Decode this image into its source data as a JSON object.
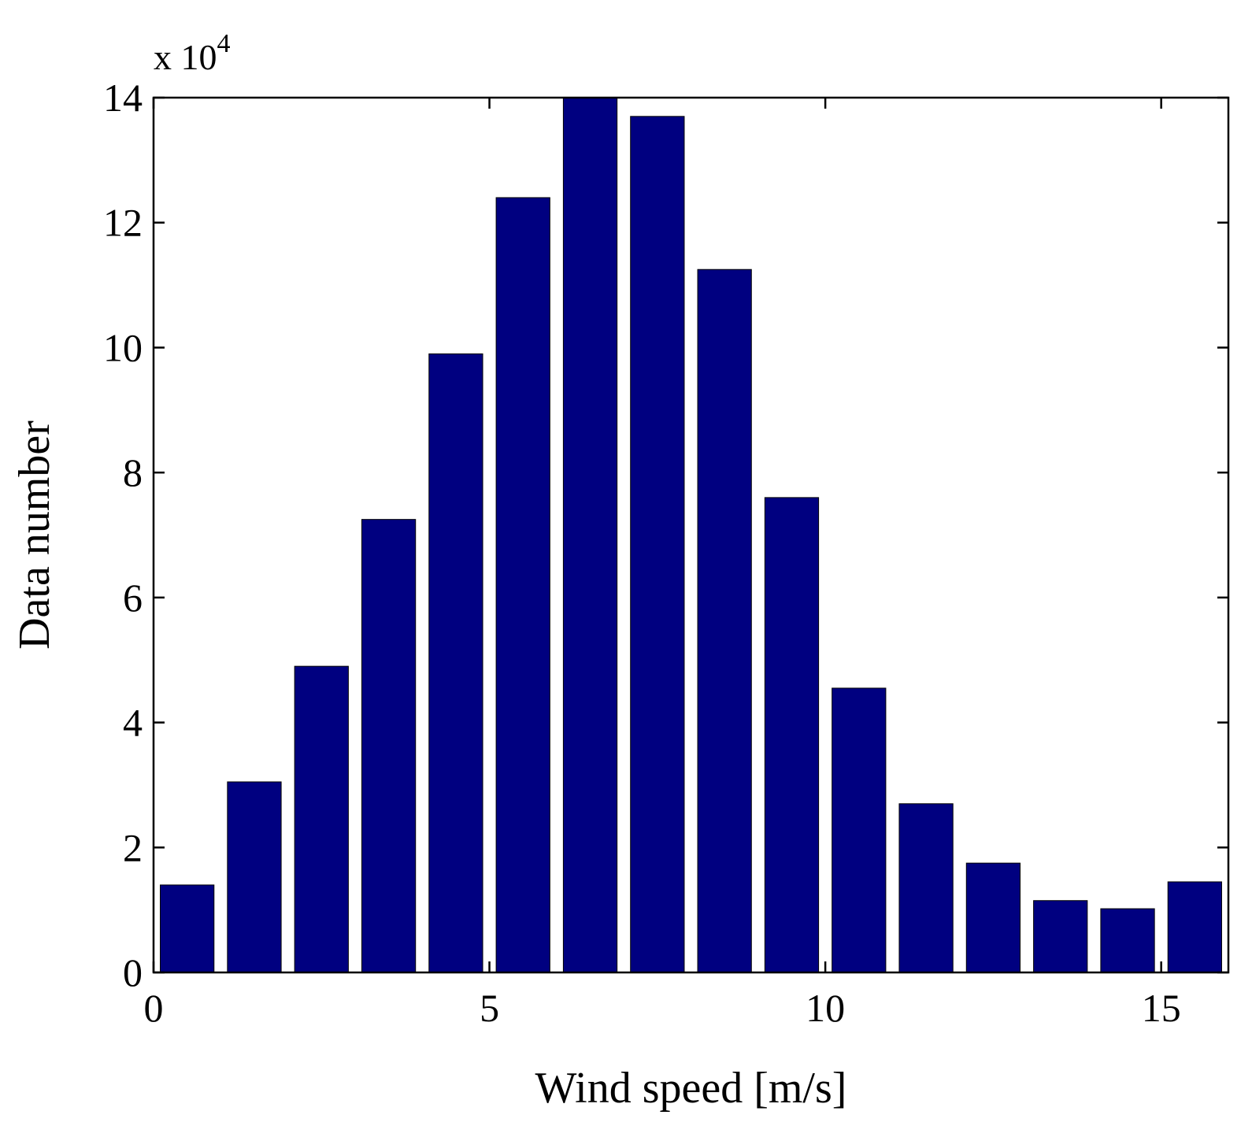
{
  "chart_data": {
    "type": "bar",
    "xlabel": "Wind speed [m/s]",
    "ylabel": "Data number",
    "y_multiplier": {
      "base": "x 10",
      "exponent": "4"
    },
    "xlim": [
      0,
      16
    ],
    "ylim": [
      0,
      14
    ],
    "xticks": [
      0,
      5,
      10,
      15
    ],
    "yticks": [
      0,
      2,
      4,
      6,
      8,
      10,
      12,
      14
    ],
    "x": [
      0.5,
      1.5,
      2.5,
      3.5,
      4.5,
      5.5,
      6.5,
      7.5,
      8.5,
      9.5,
      10.5,
      11.5,
      12.5,
      13.5,
      14.5,
      15.5
    ],
    "bar_width": 0.8,
    "values": [
      1.4,
      3.05,
      4.9,
      7.25,
      9.9,
      12.4,
      14.0,
      13.7,
      11.25,
      7.6,
      4.55,
      2.7,
      1.75,
      1.15,
      1.02,
      1.45
    ],
    "bar_color": "#000080",
    "grid": false,
    "box": true
  }
}
